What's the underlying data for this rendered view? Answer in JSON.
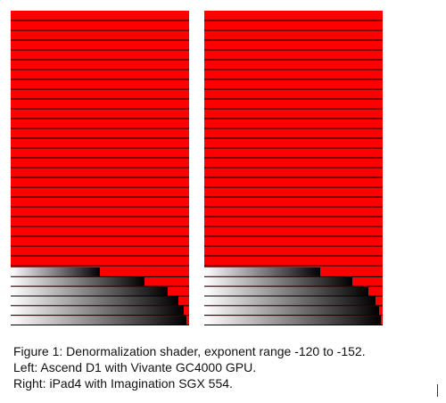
{
  "figure": {
    "panels": [
      {
        "name": "left",
        "bg_color": "#ff0000",
        "line_color": "#000000",
        "red_rows": 26,
        "gradient_rows": [
          {
            "fill": 0.5
          },
          {
            "fill": 0.75
          },
          {
            "fill": 0.88
          },
          {
            "fill": 0.94
          },
          {
            "fill": 0.97
          },
          {
            "fill": 0.985
          }
        ]
      },
      {
        "name": "right",
        "bg_color": "#ff0000",
        "line_color": "#000000",
        "red_rows": 26,
        "gradient_rows": [
          {
            "fill": 0.65
          },
          {
            "fill": 0.83
          },
          {
            "fill": 0.92
          },
          {
            "fill": 0.96
          },
          {
            "fill": 0.98
          },
          {
            "fill": 0.99
          }
        ]
      }
    ],
    "caption": {
      "line1": "Figure 1: Denormalization shader, exponent range -120 to -152.",
      "line2": "Left: Ascend D1 with Vivante GC4000 GPU.",
      "line3": "Right: iPad4 with Imagination SGX 554."
    }
  }
}
